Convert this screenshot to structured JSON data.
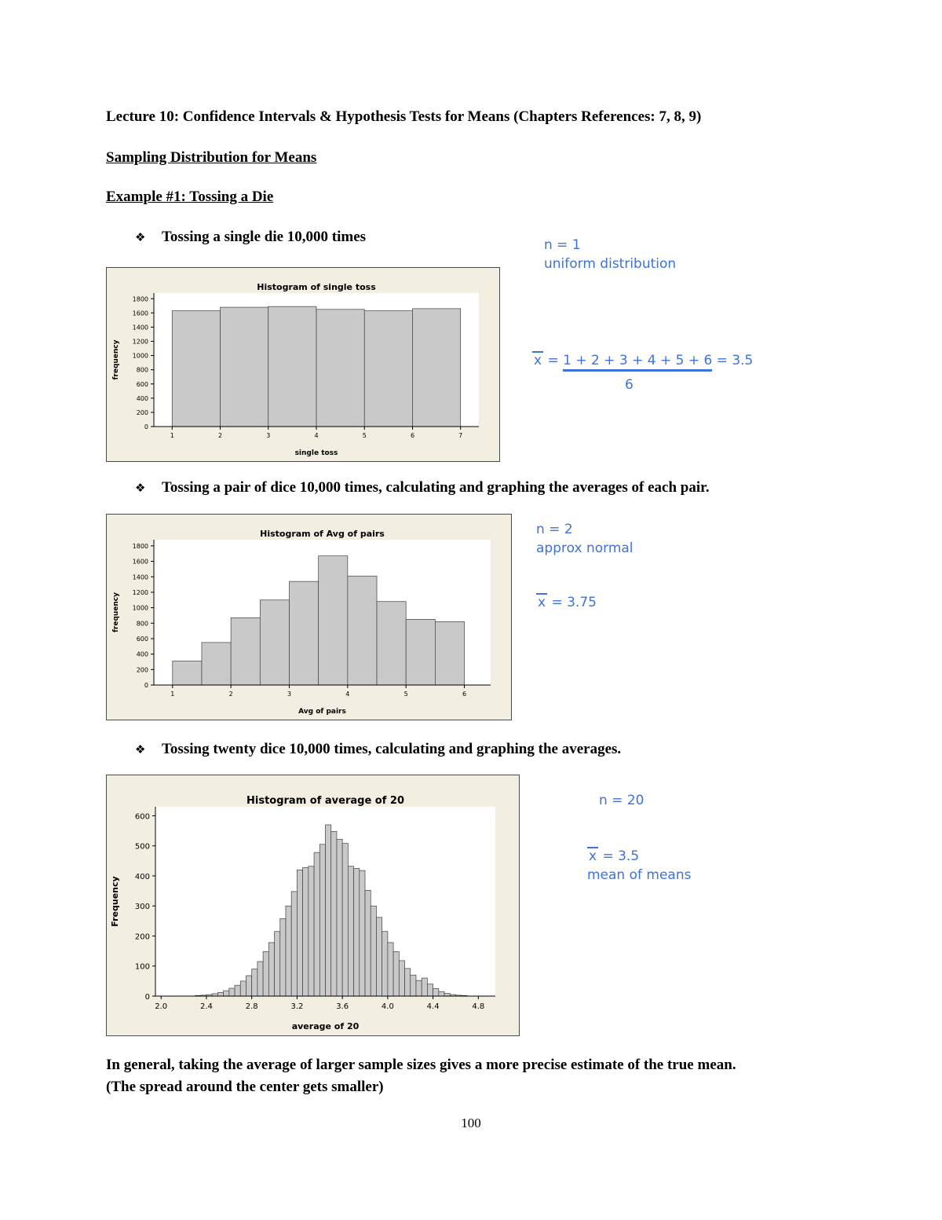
{
  "page": {
    "title": "Lecture 10: Confidence Intervals & Hypothesis Tests for Means (Chapters References: 7, 8, 9)",
    "heading1": "Sampling Distribution for Means",
    "heading2": "Example #1: Tossing a Die",
    "bullet_glyph": "❖",
    "bullet1": "Tossing a single die 10,000 times",
    "bullet2": "Tossing a pair of dice 10,000 times, calculating and graphing the averages of each pair.",
    "bullet3": "Tossing twenty dice 10,000 times, calculating and graphing the averages.",
    "footer_line1": "In general, taking the average of larger sample sizes gives a more precise estimate of the true mean.",
    "footer_line2": "(The spread around the center gets smaller)",
    "page_number": "100"
  },
  "annotations": {
    "ink_color": "#3f72d9",
    "a1_line1": "n = 1",
    "a1_line2": "uniform distribution",
    "formula1_x": "x",
    "formula1_eq": " = ",
    "formula1_sum": "1 + 2 + 3 + 4 + 5 + 6",
    "formula1_result": " = 3.5",
    "formula1_denominator": "6",
    "a2_line1": "n = 2",
    "a2_line2": "approx normal",
    "formula2_x": "x",
    "formula2_rest": " = 3.75",
    "a3_line1": "n = 20",
    "formula3_x": "x",
    "formula3_rest": " = 3.5",
    "a3_line2": "mean of means"
  },
  "chart_data": [
    {
      "type": "bar",
      "title": "Histogram of single toss",
      "xlabel": "single toss",
      "ylabel": "frequency",
      "x_start": 1,
      "bin_width": 1,
      "values": [
        1630,
        1680,
        1690,
        1650,
        1630,
        1660
      ],
      "xticks": [
        1,
        2,
        3,
        4,
        5,
        6,
        7
      ],
      "xtick_labels": [
        "1",
        "2",
        "3",
        "4",
        "5",
        "6",
        "7"
      ],
      "yticks": [
        0,
        200,
        400,
        600,
        800,
        1000,
        1200,
        1400,
        1600,
        1800
      ],
      "ytick_labels": [
        "0",
        "200",
        "400",
        "600",
        "800",
        "1000",
        "1200",
        "1400",
        "1600",
        "1800"
      ],
      "xlim": [
        0.62,
        7.38
      ],
      "ylim": [
        0,
        1880
      ],
      "grid": false,
      "legend": "none",
      "colors": {
        "bg": "#f2eee1",
        "plot_bg": "#ffffff",
        "bar_fill": "#c9c9c9",
        "bar_stroke": "#404040"
      }
    },
    {
      "type": "bar",
      "title": "Histogram of Avg of pairs",
      "xlabel": "Avg of pairs",
      "ylabel": "frequency",
      "x_start": 1,
      "bin_width": 0.5,
      "values": [
        310,
        550,
        870,
        1100,
        1340,
        1670,
        1410,
        1080,
        850,
        820
      ],
      "xticks": [
        1,
        2,
        3,
        4,
        5,
        6
      ],
      "xtick_labels": [
        "1",
        "2",
        "3",
        "4",
        "5",
        "6"
      ],
      "yticks": [
        0,
        200,
        400,
        600,
        800,
        1000,
        1200,
        1400,
        1600,
        1800
      ],
      "ytick_labels": [
        "0",
        "200",
        "400",
        "600",
        "800",
        "1000",
        "1200",
        "1400",
        "1600",
        "1800"
      ],
      "xlim": [
        0.68,
        6.45
      ],
      "ylim": [
        0,
        1880
      ],
      "grid": false,
      "legend": "none",
      "colors": {
        "bg": "#f2eee1",
        "plot_bg": "#ffffff",
        "bar_fill": "#c9c9c9",
        "bar_stroke": "#404040"
      }
    },
    {
      "type": "bar",
      "title": "Histogram of average of 20",
      "xlabel": "average of 20",
      "ylabel": "Frequency",
      "x_start": 2.3,
      "bin_width": 0.05,
      "values": [
        2,
        3,
        5,
        8,
        12,
        18,
        26,
        36,
        50,
        68,
        90,
        115,
        148,
        178,
        215,
        258,
        300,
        348,
        420,
        428,
        432,
        478,
        505,
        570,
        548,
        522,
        508,
        432,
        425,
        418,
        352,
        300,
        262,
        215,
        178,
        148,
        118,
        92,
        70,
        52,
        60,
        40,
        25,
        15,
        9,
        5,
        3,
        2
      ],
      "xticks": [
        2.0,
        2.4,
        2.8,
        3.2,
        3.6,
        4.0,
        4.4,
        4.8
      ],
      "xtick_labels": [
        "2.0",
        "2.4",
        "2.8",
        "3.2",
        "3.6",
        "4.0",
        "4.4",
        "4.8"
      ],
      "yticks": [
        0,
        100,
        200,
        300,
        400,
        500,
        600
      ],
      "ytick_labels": [
        "0",
        "100",
        "200",
        "300",
        "400",
        "500",
        "600"
      ],
      "xlim": [
        1.95,
        4.95
      ],
      "ylim": [
        0,
        630
      ],
      "grid": false,
      "legend": "none",
      "colors": {
        "bg": "#f2eee1",
        "plot_bg": "#ffffff",
        "bar_fill": "#c9c9c9",
        "bar_stroke": "#404040"
      }
    }
  ]
}
